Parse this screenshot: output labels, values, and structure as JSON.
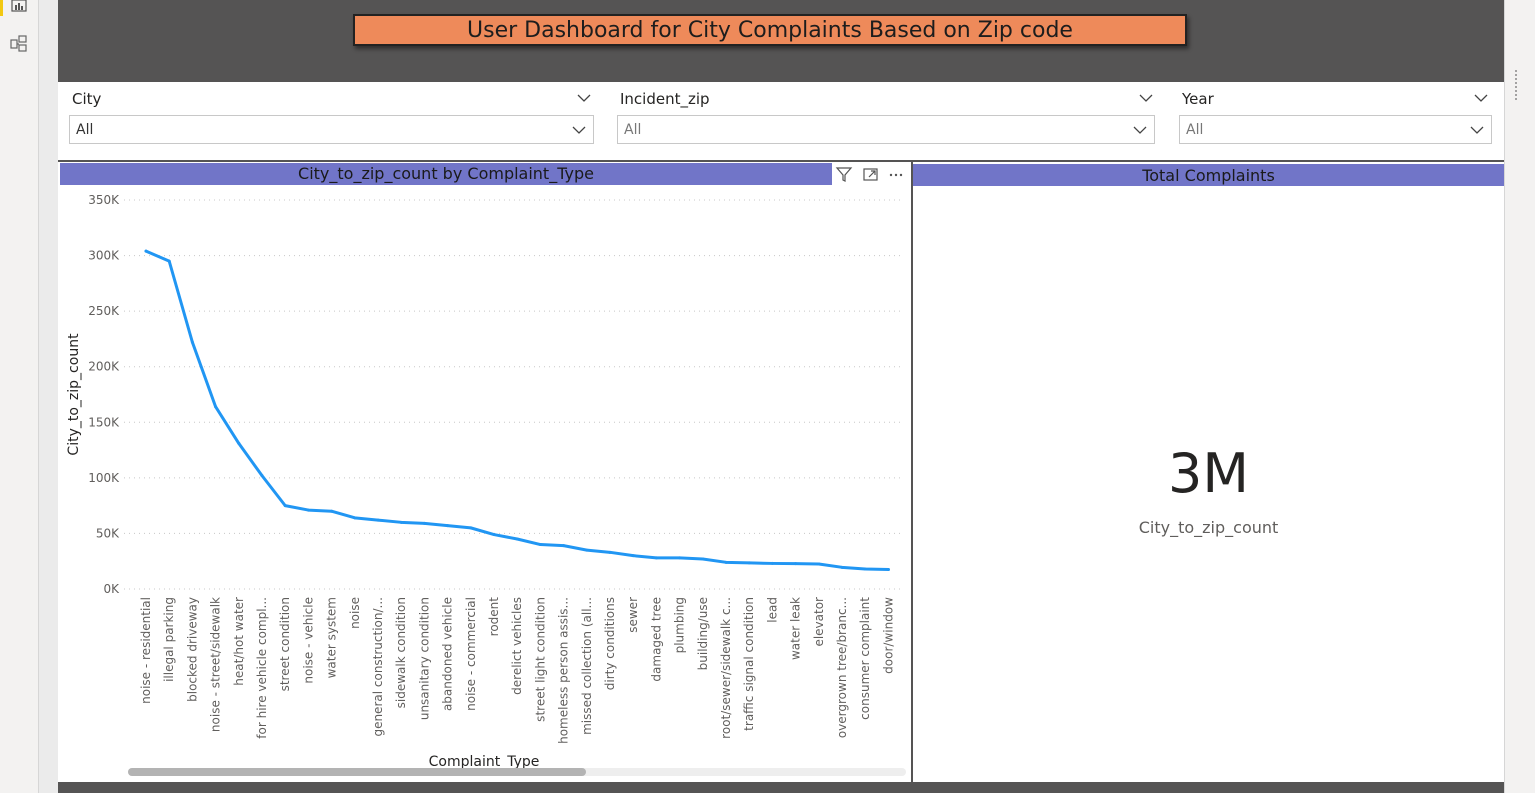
{
  "report": {
    "title": "User Dashboard for City Complaints Based on Zip code"
  },
  "left_nav": {
    "icons": [
      "report-view-icon",
      "model-view-icon"
    ]
  },
  "slicers": [
    {
      "label": "City",
      "value": "All"
    },
    {
      "label": "Incident_zip",
      "value": "All"
    },
    {
      "label": "Year",
      "value": "All"
    }
  ],
  "line_visual": {
    "header": "City_to_zip_count by Complaint_Type",
    "tools": [
      "filter-icon",
      "focus-mode-icon",
      "more-options-icon"
    ]
  },
  "kpi_visual": {
    "header": "Total Complaints",
    "value": "3M",
    "label": "City_to_zip_count"
  },
  "colors": {
    "canvas": "#555454",
    "banner": "#ee8a5a",
    "visual_header": "#7175c8",
    "line": "#2196f3"
  },
  "chart_data": {
    "type": "line",
    "title": "City_to_zip_count by Complaint_Type",
    "xlabel": "Complaint_Type",
    "ylabel": "City_to_zip_count",
    "ylim": [
      0,
      350000
    ],
    "yticks": [
      "0K",
      "50K",
      "100K",
      "150K",
      "200K",
      "250K",
      "300K",
      "350K"
    ],
    "grid": true,
    "categories": [
      "noise - residential",
      "illegal parking",
      "blocked driveway",
      "noise - street/sidewalk",
      "heat/hot water",
      "for hire vehicle compl...",
      "street condition",
      "noise - vehicle",
      "water system",
      "noise",
      "general construction/...",
      "sidewalk condition",
      "unsanitary condition",
      "abandoned vehicle",
      "noise - commercial",
      "rodent",
      "derelict vehicles",
      "street light condition",
      "homeless person assis...",
      "missed collection (all...",
      "dirty conditions",
      "sewer",
      "damaged tree",
      "plumbing",
      "building/use",
      "root/sewer/sidewalk c...",
      "traffic signal condition",
      "lead",
      "water leak",
      "elevator",
      "overgrown tree/branc...",
      "consumer complaint",
      "door/window"
    ],
    "series": [
      {
        "values": [
          304000,
          295000,
          222000,
          164000,
          131000,
          102000,
          75000,
          71000,
          70000,
          64000,
          62000,
          60000,
          59000,
          57000,
          55000,
          49000,
          45000,
          40000,
          39000,
          35000,
          33000,
          30000,
          28000,
          28000,
          27000,
          24000,
          23500,
          23000,
          22800,
          22500,
          19500,
          18000,
          17500
        ]
      }
    ]
  }
}
